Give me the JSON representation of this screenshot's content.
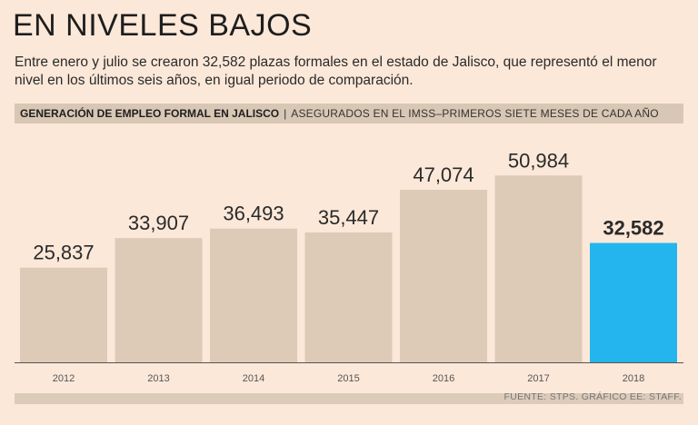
{
  "header": {
    "title": "EN NIVELES BAJOS",
    "subtitle": "Entre enero y julio se crearon 32,582 plazas formales en el estado de Jalisco, que representó el menor nivel en los últimos seis años, en igual periodo de comparación.",
    "section_main": "GENERACIÓN DE EMPLEO FORMAL EN JALISCO",
    "section_sep": "|",
    "section_sub": "ASEGURADOS EN EL IMSS–PRIMEROS SIETE MESES DE CADA AÑO"
  },
  "source": "FUENTE: STPS. GRÁFICO EE: STAFF.",
  "colors": {
    "background": "#fce8d9",
    "bar": "#ddcab7",
    "highlight_bar": "#25b5ee",
    "axis": "#555555"
  },
  "chart_data": {
    "type": "bar",
    "title": "GENERACIÓN DE EMPLEO FORMAL EN JALISCO",
    "categories": [
      "2012",
      "2013",
      "2014",
      "2015",
      "2016",
      "2017",
      "2018"
    ],
    "values": [
      25837,
      33907,
      36493,
      35447,
      47074,
      50984,
      32582
    ],
    "data_labels": [
      "25,837",
      "33,907",
      "36,493",
      "35,447",
      "47,074",
      "50,984",
      "32,582"
    ],
    "highlight_index": 6,
    "xlabel": "",
    "ylabel": "",
    "ylim": [
      0,
      57000
    ],
    "grid": false,
    "legend": "none"
  }
}
